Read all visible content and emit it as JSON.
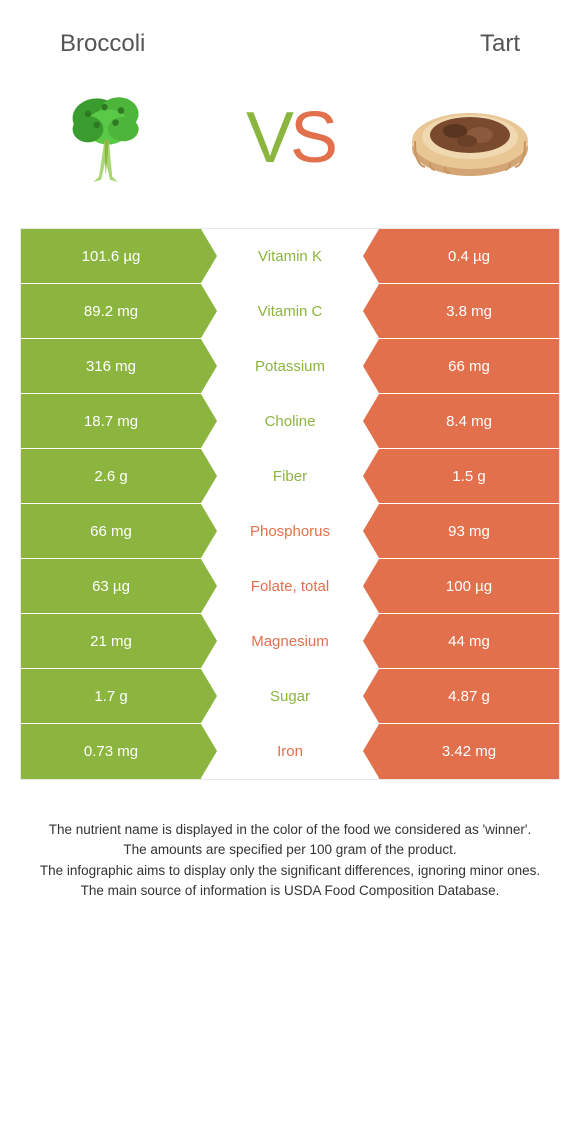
{
  "header": {
    "left_title": "Broccoli",
    "right_title": "Tart"
  },
  "vs": {
    "v": "V",
    "s": "S"
  },
  "colors": {
    "left": "#8bb53e",
    "right": "#e2704d",
    "row_border": "#ffffff",
    "table_border": "#e8e8e8",
    "title_text": "#555555",
    "footer_text": "#333333"
  },
  "table": {
    "rows": [
      {
        "left": "101.6 µg",
        "label": "Vitamin K",
        "right": "0.4 µg",
        "winner": "left"
      },
      {
        "left": "89.2 mg",
        "label": "Vitamin C",
        "right": "3.8 mg",
        "winner": "left"
      },
      {
        "left": "316 mg",
        "label": "Potassium",
        "right": "66 mg",
        "winner": "left"
      },
      {
        "left": "18.7 mg",
        "label": "Choline",
        "right": "8.4 mg",
        "winner": "left"
      },
      {
        "left": "2.6 g",
        "label": "Fiber",
        "right": "1.5 g",
        "winner": "left"
      },
      {
        "left": "66 mg",
        "label": "Phosphorus",
        "right": "93 mg",
        "winner": "right"
      },
      {
        "left": "63 µg",
        "label": "Folate, total",
        "right": "100 µg",
        "winner": "right"
      },
      {
        "left": "21 mg",
        "label": "Magnesium",
        "right": "44 mg",
        "winner": "right"
      },
      {
        "left": "1.7 g",
        "label": "Sugar",
        "right": "4.87 g",
        "winner": "left"
      },
      {
        "left": "0.73 mg",
        "label": "Iron",
        "right": "3.42 mg",
        "winner": "right"
      }
    ]
  },
  "footer": {
    "line1": "The nutrient name is displayed in the color of the food we considered as 'winner'.",
    "line2": "The amounts are specified per 100 gram of the product.",
    "line3": "The infographic aims to display only the significant differences, ignoring minor ones.",
    "line4": "The main source of information is USDA Food Composition Database."
  }
}
